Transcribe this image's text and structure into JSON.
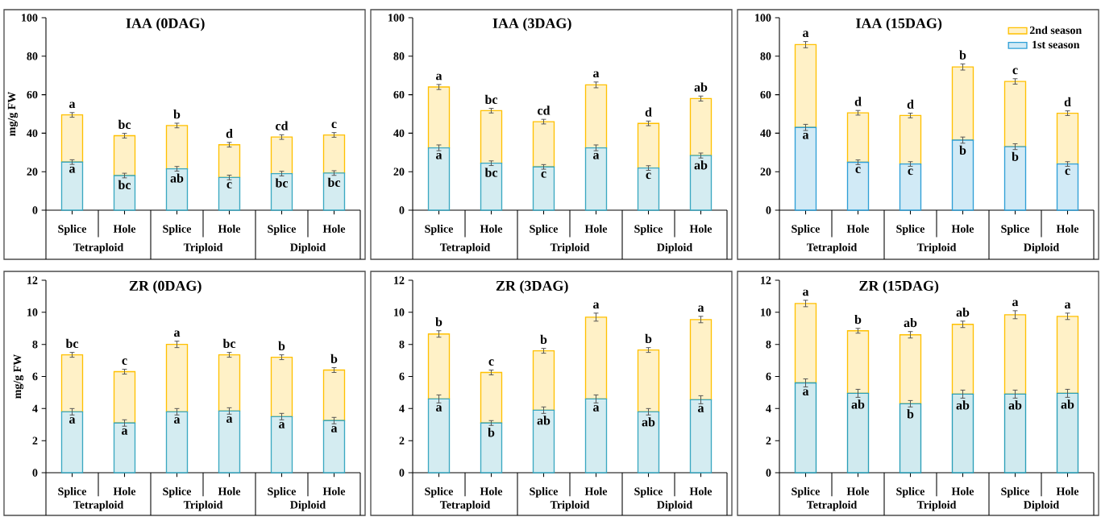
{
  "chart_data": [
    {
      "type": "bar",
      "stacked": true,
      "title": "IAA (0DAG)",
      "ylabel": "mg/g FW",
      "categories": [
        "Splice",
        "Hole",
        "Splice",
        "Hole",
        "Splice",
        "Hole"
      ],
      "annotations": [
        "Tetraploid",
        "Triploid",
        "Diploid"
      ],
      "ylim": [
        0,
        100
      ],
      "yticks": [
        0,
        20,
        40,
        60,
        80,
        100
      ],
      "series": [
        {
          "color": "#3aa8c1",
          "values": [
            25,
            18,
            21.5,
            17,
            19,
            19.3
          ],
          "errors": [
            1.2,
            1.2,
            1.2,
            1.2,
            1.2,
            1.2
          ],
          "value_labels": [
            "a",
            "bc",
            "ab",
            "c",
            "bc",
            "bc"
          ]
        },
        {
          "color": "#ffc000",
          "values": [
            24.5,
            20.7,
            22.5,
            17,
            19,
            19.8
          ],
          "errors": [
            1.2,
            1.2,
            1.2,
            1.2,
            1.2,
            1.2
          ],
          "value_labels": [
            "a",
            "bc",
            "b",
            "d",
            "cd",
            "c"
          ]
        }
      ]
    },
    {
      "type": "bar",
      "stacked": true,
      "title": "IAA (3DAG)",
      "categories": [
        "Splice",
        "Hole",
        "Splice",
        "Hole",
        "Splice",
        "Hole"
      ],
      "annotations": [
        "Tetraploid",
        "Triploid",
        "Diploid"
      ],
      "ylim": [
        0,
        100
      ],
      "yticks": [
        0,
        20,
        40,
        60,
        80,
        100
      ],
      "series": [
        {
          "color": "#3aa8c1",
          "values": [
            32.4,
            24.4,
            22.5,
            32.4,
            21.9,
            28.4
          ],
          "errors": [
            1.5,
            1.2,
            1.2,
            1.5,
            1.2,
            1.3
          ],
          "value_labels": [
            "a",
            "bc",
            "c",
            "a",
            "c",
            "ab"
          ]
        },
        {
          "color": "#ffc000",
          "values": [
            31.6,
            27.3,
            23.5,
            32.7,
            23.2,
            29.6
          ],
          "errors": [
            1.3,
            1.2,
            1.2,
            1.5,
            1.2,
            1.3
          ],
          "value_labels": [
            "a",
            "bc",
            "cd",
            "a",
            "d",
            "ab"
          ]
        }
      ]
    },
    {
      "type": "bar",
      "stacked": true,
      "title": "IAA (15DAG)",
      "legend": "top right",
      "categories": [
        "Splice",
        "Hole",
        "Splice",
        "Hole",
        "Splice",
        "Hole"
      ],
      "annotations": [
        "Tetraploid",
        "Triploid",
        "Diploid"
      ],
      "ylim": [
        0,
        100
      ],
      "yticks": [
        0,
        20,
        40,
        60,
        80,
        100
      ],
      "series": [
        {
          "name": "1st season",
          "color": "#2e9fd6",
          "values": [
            43,
            24.9,
            24,
            36.4,
            33,
            24
          ],
          "errors": [
            1.6,
            1.2,
            1.2,
            1.6,
            1.5,
            1.2
          ],
          "value_labels": [
            "a",
            "c",
            "c",
            "b",
            "b",
            "c"
          ]
        },
        {
          "name": "2nd season",
          "color": "#ffc000",
          "values": [
            43,
            25.7,
            25.2,
            38,
            33.9,
            26.4
          ],
          "errors": [
            1.6,
            1.2,
            1.2,
            1.6,
            1.4,
            1.2
          ],
          "value_labels": [
            "a",
            "d",
            "d",
            "b",
            "c",
            "d"
          ]
        }
      ]
    },
    {
      "type": "bar",
      "stacked": true,
      "title": "ZR (0DAG)",
      "ylabel": "mg/g FW",
      "categories": [
        "Splice",
        "Hole",
        "Splice",
        "Hole",
        "Splice",
        "Hole"
      ],
      "annotations": [
        "Tetraploid",
        "Triploid",
        "Diploid"
      ],
      "ylim": [
        0,
        12
      ],
      "yticks": [
        0,
        2,
        4,
        6,
        8,
        10,
        12
      ],
      "series": [
        {
          "color": "#3aa8c1",
          "values": [
            3.8,
            3.1,
            3.8,
            3.85,
            3.5,
            3.25
          ],
          "errors": [
            0.2,
            0.2,
            0.2,
            0.2,
            0.2,
            0.2
          ],
          "value_labels": [
            "a",
            "a",
            "a",
            "a",
            "a",
            "a"
          ]
        },
        {
          "color": "#ffc000",
          "values": [
            3.55,
            3.2,
            4.2,
            3.5,
            3.7,
            3.15
          ],
          "errors": [
            0.15,
            0.15,
            0.2,
            0.15,
            0.15,
            0.15
          ],
          "value_labels": [
            "bc",
            "c",
            "a",
            "bc",
            "b",
            "b"
          ]
        }
      ]
    },
    {
      "type": "bar",
      "stacked": true,
      "title": "ZR (3DAG)",
      "categories": [
        "Splice",
        "Hole",
        "Splice",
        "Hole",
        "Splice",
        "Hole"
      ],
      "annotations": [
        "Tetraploid",
        "Triploid",
        "Diploid"
      ],
      "ylim": [
        0,
        12
      ],
      "yticks": [
        0,
        2,
        4,
        6,
        8,
        10,
        12
      ],
      "series": [
        {
          "color": "#3aa8c1",
          "values": [
            4.6,
            3.1,
            3.9,
            4.6,
            3.8,
            4.55
          ],
          "errors": [
            0.25,
            0.15,
            0.2,
            0.25,
            0.2,
            0.25
          ],
          "value_labels": [
            "a",
            "b",
            "ab",
            "a",
            "ab",
            "a"
          ]
        },
        {
          "color": "#ffc000",
          "values": [
            4.05,
            3.15,
            3.7,
            5.1,
            3.85,
            5
          ],
          "errors": [
            0.2,
            0.15,
            0.15,
            0.25,
            0.15,
            0.2
          ],
          "value_labels": [
            "b",
            "c",
            "b",
            "a",
            "b",
            "a"
          ]
        }
      ]
    },
    {
      "type": "bar",
      "stacked": true,
      "title": "ZR (15DAG)",
      "categories": [
        "Splice",
        "Hole",
        "Splice",
        "Hole",
        "Splice",
        "Hole"
      ],
      "annotations": [
        "Tetraploid",
        "Triploid",
        "Diploid"
      ],
      "ylim": [
        0,
        12
      ],
      "yticks": [
        0,
        2,
        4,
        6,
        8,
        10,
        12
      ],
      "series": [
        {
          "color": "#2a9fb8",
          "values": [
            5.6,
            4.95,
            4.3,
            4.9,
            4.9,
            4.95
          ],
          "errors": [
            0.25,
            0.25,
            0.2,
            0.25,
            0.25,
            0.25
          ],
          "value_labels": [
            "a",
            "ab",
            "b",
            "ab",
            "ab",
            "ab"
          ]
        },
        {
          "color": "#ffc000",
          "values": [
            4.95,
            3.9,
            4.3,
            4.35,
            4.95,
            4.8
          ],
          "errors": [
            0.2,
            0.15,
            0.2,
            0.2,
            0.25,
            0.2
          ],
          "value_labels": [
            "a",
            "b",
            "ab",
            "ab",
            "a",
            "a"
          ]
        }
      ]
    }
  ]
}
